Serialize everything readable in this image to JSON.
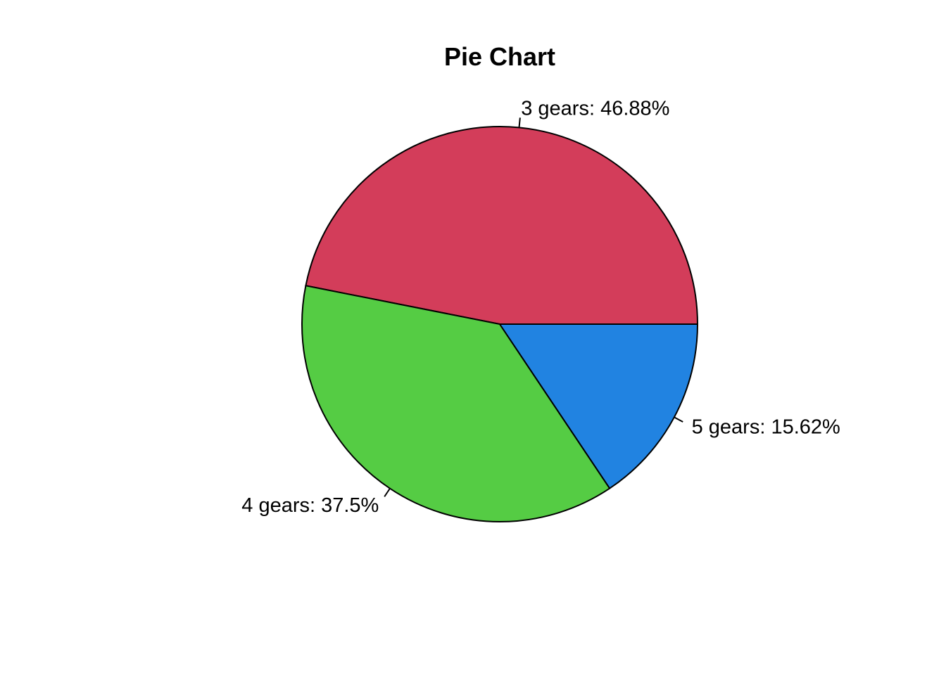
{
  "chart_data": {
    "type": "pie",
    "title": "Pie Chart",
    "slices": [
      {
        "label": "3 gears: 46.88%",
        "value": 46.88,
        "color": "#D33D5A"
      },
      {
        "label": "4 gears: 37.5%",
        "value": 37.5,
        "color": "#55CC44"
      },
      {
        "label": "5 gears: 15.62%",
        "value": 15.62,
        "color": "#2183E1"
      }
    ],
    "start_angle": "3 o'clock",
    "direction": "counterclockwise",
    "legend": "none"
  }
}
